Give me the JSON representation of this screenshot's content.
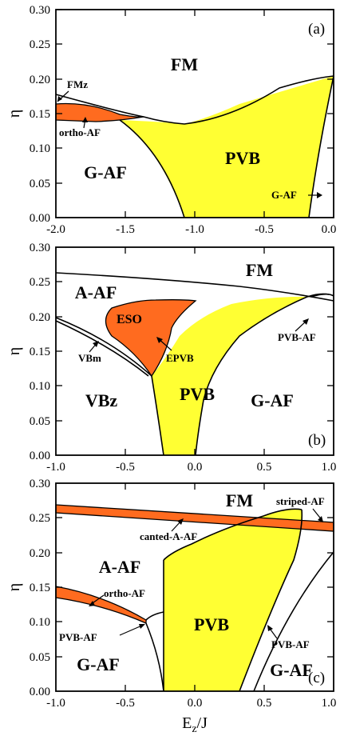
{
  "chart_data": [
    {
      "type": "area",
      "panel_label": "(a)",
      "xlim": [
        -2.0,
        0.0
      ],
      "ylim": [
        0.0,
        0.3
      ],
      "x_ticks": [
        "-2.0",
        "-1.5",
        "-1.0",
        "-0.5",
        "0.0"
      ],
      "y_ticks": [
        "0.00",
        "0.05",
        "0.10",
        "0.15",
        "0.20",
        "0.25",
        "0.30"
      ],
      "ylabel": "η",
      "xlabel": "",
      "region_labels": [
        "FM",
        "PVB",
        "G-AF"
      ],
      "annotations": [
        "FMz",
        "ortho-AF",
        "G-AF"
      ],
      "boundaries": [
        {
          "name": "FM upper boundary",
          "x": [
            -2.0,
            -1.8,
            -1.5,
            -1.3,
            -1.1,
            -0.9,
            -0.7,
            -0.5,
            -0.3,
            -0.1,
            0.0
          ],
          "y": [
            0.168,
            0.16,
            0.152,
            0.145,
            0.136,
            0.143,
            0.16,
            0.175,
            0.187,
            0.197,
            0.203
          ]
        },
        {
          "name": "ortho-AF lower boundary",
          "x": [
            -2.0,
            -1.8,
            -1.6,
            -1.45
          ],
          "y": [
            0.148,
            0.147,
            0.146,
            0.145
          ]
        },
        {
          "name": "G-AF / PVB boundary",
          "x": [
            -1.5,
            -1.4,
            -1.3,
            -1.2,
            -1.15,
            -1.1
          ],
          "y": [
            0.145,
            0.123,
            0.094,
            0.052,
            0.025,
            0.0
          ]
        },
        {
          "name": "PVB right boundary",
          "x": [
            -0.2,
            -0.16,
            -0.12,
            -0.08,
            -0.04,
            0.0
          ],
          "y": [
            0.0,
            0.05,
            0.1,
            0.15,
            0.18,
            0.203
          ]
        }
      ]
    },
    {
      "type": "area",
      "panel_label": "(b)",
      "xlim": [
        -1.0,
        1.0
      ],
      "ylim": [
        0.0,
        0.3
      ],
      "x_ticks": [
        "-1.0",
        "-0.5",
        "0.0",
        "0.5",
        "1.0"
      ],
      "y_ticks": [
        "0.00",
        "0.05",
        "0.10",
        "0.15",
        "0.20",
        "0.25",
        "0.30"
      ],
      "ylabel": "η",
      "xlabel": "",
      "region_labels": [
        "FM",
        "A-AF",
        "ESO",
        "PVB",
        "VBz",
        "G-AF"
      ],
      "annotations": [
        "VBm",
        "EPVB",
        "PVB-AF"
      ],
      "boundaries": [
        {
          "name": "FM / A-AF boundary",
          "x": [
            -1.0,
            -0.5,
            0.0,
            0.5,
            0.6
          ],
          "y": [
            0.262,
            0.25,
            0.238,
            0.222,
            0.218
          ]
        },
        {
          "name": "VBm band",
          "x": [
            -1.0,
            -0.7,
            -0.5,
            -0.35,
            -0.31
          ],
          "y": [
            0.195,
            0.18,
            0.155,
            0.125,
            0.112
          ]
        },
        {
          "name": "PVB left boundary",
          "x": [
            -0.3,
            -0.27,
            -0.24,
            -0.22
          ],
          "y": [
            0.1,
            0.06,
            0.02,
            0.0
          ]
        },
        {
          "name": "PVB right boundary",
          "x": [
            0.05,
            0.1,
            0.3,
            0.5,
            0.8
          ],
          "y": [
            0.0,
            0.05,
            0.13,
            0.185,
            0.225
          ]
        }
      ]
    },
    {
      "type": "area",
      "panel_label": "(c)",
      "xlim": [
        -1.0,
        1.0
      ],
      "ylim": [
        0.0,
        0.3
      ],
      "x_ticks": [
        "-1.0",
        "-0.5",
        "0.0",
        "0.5",
        "1.0"
      ],
      "y_ticks": [
        "0.00",
        "0.05",
        "0.10",
        "0.15",
        "0.20",
        "0.25",
        "0.30"
      ],
      "ylabel": "η",
      "xlabel": "E_z/J",
      "region_labels": [
        "FM",
        "A-AF",
        "PVB",
        "G-AF",
        "G-AF"
      ],
      "annotations": [
        "striped-AF",
        "canted-A-AF",
        "ortho-AF",
        "PVB-AF",
        "PVB-AF"
      ],
      "boundaries": [
        {
          "name": "canted-A-AF band upper",
          "x": [
            -1.0,
            -0.5,
            0.0,
            0.5,
            1.0
          ],
          "y": [
            0.263,
            0.255,
            0.245,
            0.232,
            0.217
          ]
        },
        {
          "name": "canted-A-AF band lower",
          "x": [
            -1.0,
            -0.5,
            0.0,
            0.5,
            1.0
          ],
          "y": [
            0.254,
            0.245,
            0.234,
            0.22,
            0.205
          ]
        },
        {
          "name": "ortho-AF band upper",
          "x": [
            -1.0,
            -0.8,
            -0.6,
            -0.45
          ],
          "y": [
            0.14,
            0.125,
            0.11,
            0.098
          ]
        },
        {
          "name": "PVB right boundary",
          "x": [
            0.25,
            0.4,
            0.55,
            0.7,
            0.75
          ],
          "y": [
            0.0,
            0.07,
            0.14,
            0.19,
            0.205
          ]
        }
      ]
    }
  ]
}
